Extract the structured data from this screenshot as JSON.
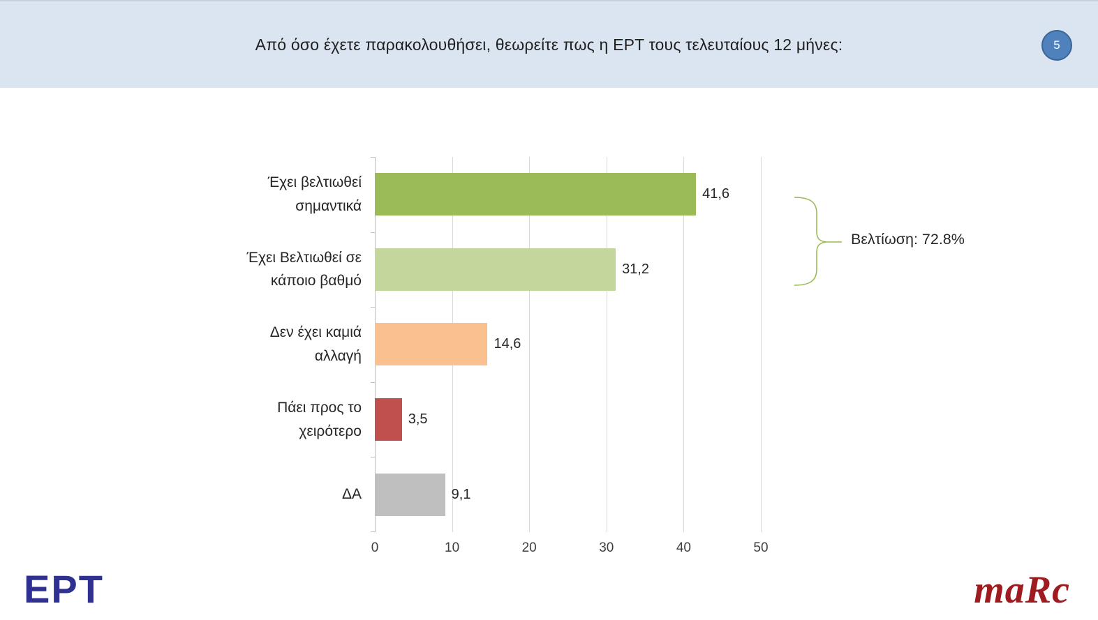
{
  "header": {
    "title": "Από όσο έχετε παρακολουθήσει, θεωρείτε πως η ΕΡΤ τους τελευταίους 12 μήνες:",
    "page_number": "5"
  },
  "chart_data": {
    "type": "bar",
    "orientation": "horizontal",
    "categories": [
      "Έχει βελτιωθεί σημαντικά",
      "Έχει Βελτιωθεί σε κάποιο βαθμό",
      "Δεν έχει καμιά αλλαγή",
      "Πάει προς το χειρότερο",
      "ΔΑ"
    ],
    "values": [
      41.6,
      31.2,
      14.6,
      3.5,
      9.1
    ],
    "value_labels": [
      "41,6",
      "31,2",
      "14,6",
      "3,5",
      "9,1"
    ],
    "colors": [
      "#9bbb59",
      "#c3d69b",
      "#fac090",
      "#c0504d",
      "#bfbfbf"
    ],
    "x_ticks": [
      "0",
      "10",
      "20",
      "30",
      "40",
      "50"
    ],
    "xlim": [
      0,
      50
    ],
    "grid": true,
    "legend": "none",
    "annotation": {
      "label": "Βελτίωση: 72.8%",
      "applies_to": [
        "Έχει βελτιωθεί σημαντικά",
        "Έχει Βελτιωθεί σε κάποιο βαθμό"
      ],
      "brace_color": "#9bbb59"
    }
  },
  "footer": {
    "left_logo_text": "ΕΡΤ",
    "right_logo_text": "maRc"
  },
  "theme": {
    "header_bg": "#dbe5f1",
    "badge_fill": "#4f81bd",
    "badge_border": "#3c6595",
    "ert_color": "#2e3192",
    "marc_color": "#9e1c20"
  }
}
